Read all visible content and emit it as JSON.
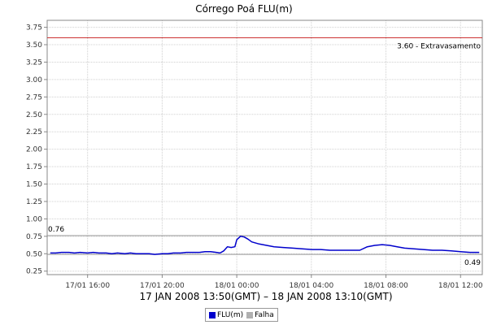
{
  "chart_data": {
    "type": "line",
    "title": "Córrego Poá FLU(m)",
    "xlabel": "17 JAN 2008 13:50(GMT) – 18 JAN 2008 13:10(GMT)",
    "ylabel": "",
    "x_unit": "hours",
    "x_range": [
      13.833,
      37.167
    ],
    "ylim": [
      0.2,
      3.85
    ],
    "y_ticks": [
      0.25,
      0.5,
      0.75,
      1.0,
      1.25,
      1.5,
      1.75,
      2.0,
      2.25,
      2.5,
      2.75,
      3.0,
      3.25,
      3.5,
      3.75
    ],
    "y_tick_labels": [
      "0.25",
      "0.50",
      "0.75",
      "1.00",
      "1.25",
      "1.50",
      "1.75",
      "2.00",
      "2.25",
      "2.50",
      "2.75",
      "3.00",
      "3.25",
      "3.50",
      "3.75"
    ],
    "x_ticks": [
      {
        "x": 16,
        "label": "17/01 16:00"
      },
      {
        "x": 20,
        "label": "17/01 20:00"
      },
      {
        "x": 24,
        "label": "18/01 00:00"
      },
      {
        "x": 28,
        "label": "18/01 04:00"
      },
      {
        "x": 32,
        "label": "18/01 08:00"
      },
      {
        "x": 36,
        "label": "18/01 12:00"
      }
    ],
    "grid": true,
    "reference_lines": [
      {
        "value": 3.6,
        "label": "3.60 - Extravasamento",
        "color": "#cc3333",
        "label_side": "right"
      },
      {
        "value": 0.76,
        "label": "0.76",
        "color": "#999999",
        "label_side": "left"
      },
      {
        "value": 0.49,
        "label": "0.49",
        "color": "#999999",
        "label_side": "right"
      }
    ],
    "legend_position": "bottom",
    "legend": [
      {
        "label": "FLU(m)",
        "color": "#0000cc"
      },
      {
        "label": "Falha",
        "color": "#b0b0b0"
      }
    ],
    "series": [
      {
        "name": "FLU(m)",
        "color": "#0000cc",
        "points": [
          [
            14.0,
            0.51
          ],
          [
            14.3,
            0.51
          ],
          [
            14.6,
            0.52
          ],
          [
            15.0,
            0.52
          ],
          [
            15.3,
            0.51
          ],
          [
            15.6,
            0.52
          ],
          [
            16.0,
            0.51
          ],
          [
            16.3,
            0.52
          ],
          [
            16.6,
            0.51
          ],
          [
            17.0,
            0.51
          ],
          [
            17.3,
            0.5
          ],
          [
            17.6,
            0.51
          ],
          [
            18.0,
            0.5
          ],
          [
            18.3,
            0.51
          ],
          [
            18.6,
            0.5
          ],
          [
            19.0,
            0.5
          ],
          [
            19.3,
            0.5
          ],
          [
            19.6,
            0.49
          ],
          [
            20.0,
            0.5
          ],
          [
            20.3,
            0.5
          ],
          [
            20.6,
            0.51
          ],
          [
            21.0,
            0.51
          ],
          [
            21.3,
            0.52
          ],
          [
            21.6,
            0.52
          ],
          [
            22.0,
            0.52
          ],
          [
            22.3,
            0.53
          ],
          [
            22.6,
            0.53
          ],
          [
            22.9,
            0.52
          ],
          [
            23.1,
            0.51
          ],
          [
            23.3,
            0.54
          ],
          [
            23.5,
            0.6
          ],
          [
            23.7,
            0.59
          ],
          [
            23.9,
            0.6
          ],
          [
            24.0,
            0.7
          ],
          [
            24.2,
            0.75
          ],
          [
            24.4,
            0.74
          ],
          [
            24.6,
            0.71
          ],
          [
            24.8,
            0.67
          ],
          [
            25.2,
            0.64
          ],
          [
            25.6,
            0.62
          ],
          [
            26.0,
            0.6
          ],
          [
            26.5,
            0.59
          ],
          [
            27.0,
            0.58
          ],
          [
            27.5,
            0.57
          ],
          [
            28.0,
            0.56
          ],
          [
            28.5,
            0.56
          ],
          [
            29.0,
            0.55
          ],
          [
            29.5,
            0.55
          ],
          [
            30.0,
            0.55
          ],
          [
            30.6,
            0.55
          ],
          [
            31.0,
            0.6
          ],
          [
            31.4,
            0.62
          ],
          [
            31.8,
            0.63
          ],
          [
            32.2,
            0.62
          ],
          [
            32.6,
            0.6
          ],
          [
            33.0,
            0.58
          ],
          [
            33.5,
            0.57
          ],
          [
            34.0,
            0.56
          ],
          [
            34.5,
            0.55
          ],
          [
            35.0,
            0.55
          ],
          [
            35.5,
            0.54
          ],
          [
            36.0,
            0.53
          ],
          [
            36.5,
            0.52
          ],
          [
            37.0,
            0.52
          ]
        ]
      }
    ]
  }
}
